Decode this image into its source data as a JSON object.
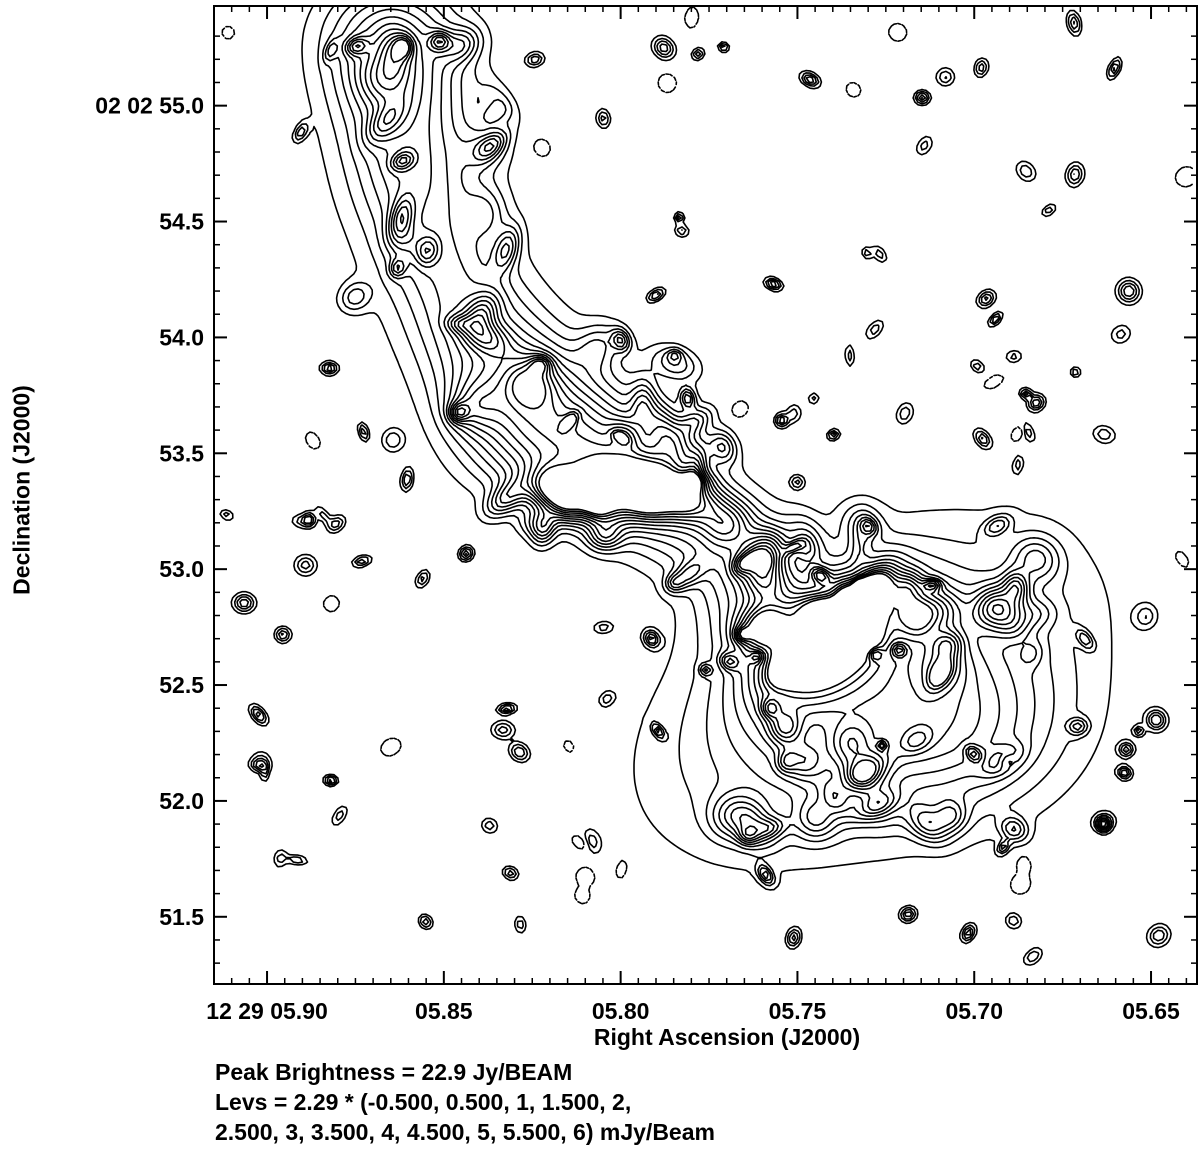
{
  "chart_data": {
    "type": "contour",
    "xlabel": "Right Ascension (J2000)",
    "ylabel": "Declination (J2000)",
    "x_ticks": [
      "12 29 05.90",
      "05.85",
      "05.80",
      "05.75",
      "05.70",
      "05.65"
    ],
    "x_tick_seconds": [
      5.9,
      5.85,
      5.8,
      5.75,
      5.7,
      5.65
    ],
    "y_ticks": [
      "02 02 55.0",
      "54.5",
      "54.0",
      "53.5",
      "53.0",
      "52.5",
      "52.0",
      "51.5"
    ],
    "y_tick_seconds": [
      55.0,
      54.5,
      54.0,
      53.5,
      53.0,
      52.5,
      52.0,
      51.5
    ],
    "xlim_seconds": [
      5.915,
      5.637
    ],
    "ylim_seconds": [
      51.21,
      55.43
    ],
    "peak_position_seconds": {
      "ra": 5.746,
      "dec": 52.66
    },
    "contour_levels_mJy_per_beam": [
      -1.145,
      1.145,
      2.29,
      3.435,
      4.58,
      5.725,
      6.87,
      8.015,
      9.16,
      10.305,
      11.45,
      12.595,
      13.74
    ],
    "negative_contours_dashed": true
  },
  "footer": {
    "peak": "Peak Brightness =  22.9 Jy/BEAM",
    "levels_line1": "Levs = 2.29 * (-0.500, 0.500, 1, 1.500, 2,",
    "levels_line2": "2.500, 3, 3.500, 4, 4.500, 5, 5.500, 6) mJy/Beam"
  }
}
